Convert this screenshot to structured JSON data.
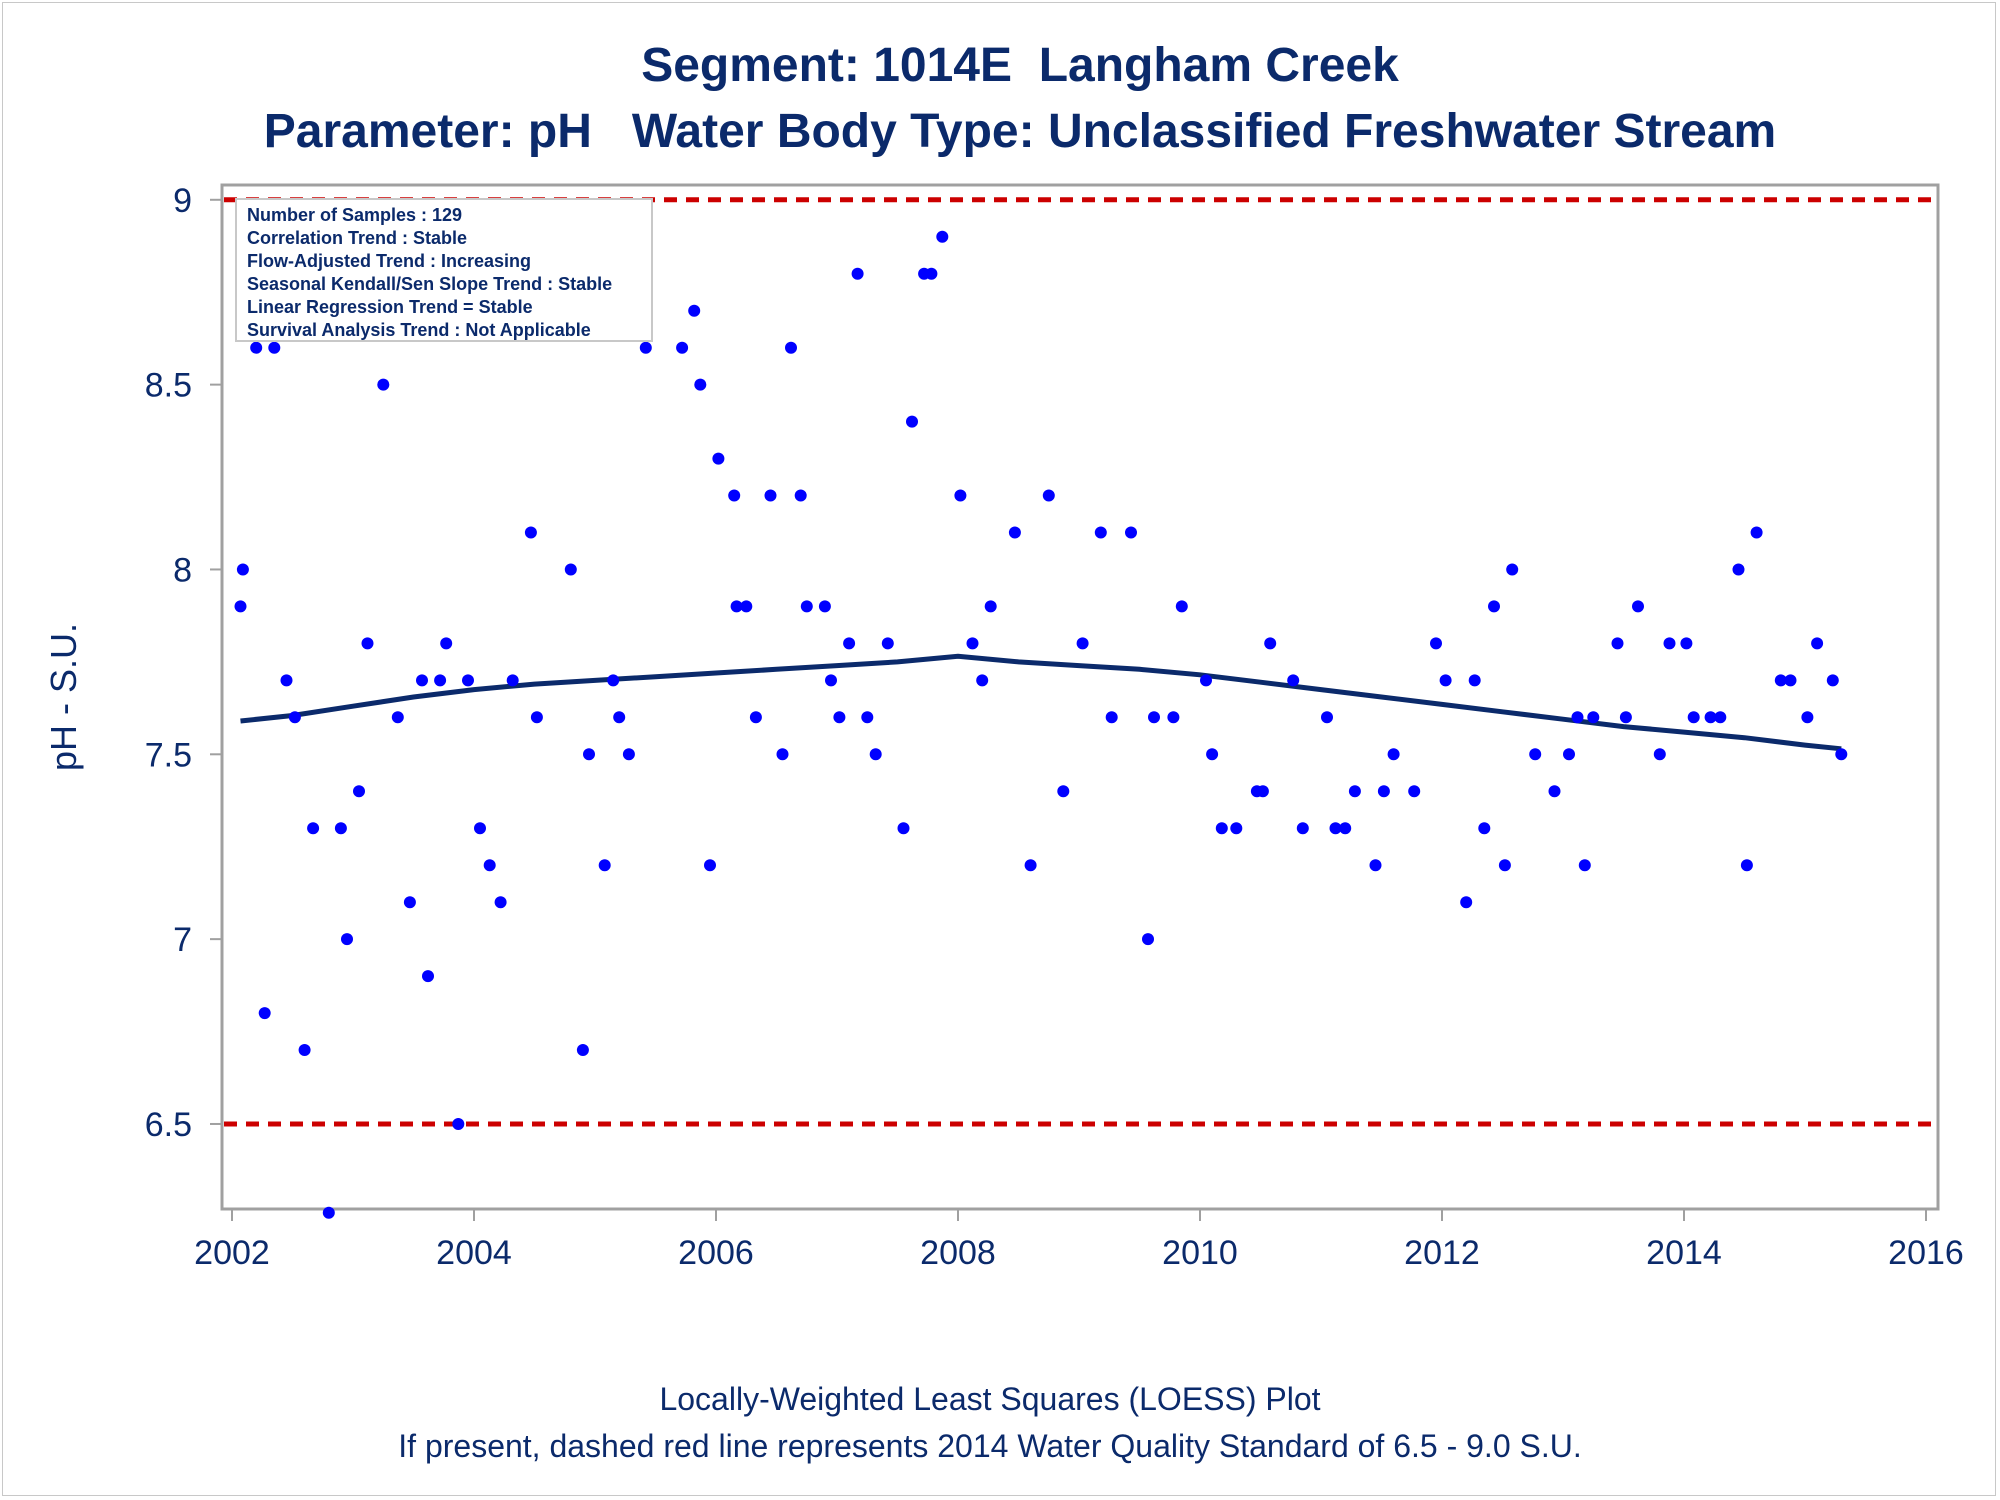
{
  "header": {
    "title": "Segment: 1014E  Langham Creek",
    "subtitle": "Parameter: pH   Water Body Type: Unclassified Freshwater Stream"
  },
  "footer": {
    "line1": "Locally-Weighted Least Squares (LOESS) Plot",
    "line2": "If present, dashed red line represents 2014 Water Quality Standard of 6.5 - 9.0 S.U."
  },
  "stats": [
    "Number of Samples : 129",
    "Correlation Trend : Stable",
    "Flow-Adjusted Trend : Increasing",
    "Seasonal Kendall/Sen Slope Trend : Stable",
    "Linear Regression Trend = Stable",
    "Survival Analysis Trend : Not Applicable"
  ],
  "colors": {
    "points": "#0000ff",
    "loess": "#0b2a6b",
    "standard": "#cc0000",
    "text": "#0b2a6b",
    "axis": "#a0a0a0"
  },
  "chart_data": {
    "type": "scatter",
    "ylabel": "pH - S.U.",
    "xlabel": "",
    "xlim": [
      2002,
      2016
    ],
    "ylim": [
      6.27,
      9.04
    ],
    "xticks": [
      "2002",
      "2004",
      "2006",
      "2008",
      "2010",
      "2012",
      "2014",
      "2016"
    ],
    "yticks": [
      "6.5",
      "7",
      "7.5",
      "8",
      "8.5",
      "9"
    ],
    "standards": [
      6.5,
      9.0
    ],
    "grid": false,
    "points": [
      [
        2002.07,
        7.9
      ],
      [
        2002.09,
        8.0
      ],
      [
        2002.2,
        8.6
      ],
      [
        2002.27,
        6.8
      ],
      [
        2002.35,
        8.6
      ],
      [
        2002.45,
        7.7
      ],
      [
        2002.52,
        7.6
      ],
      [
        2002.6,
        6.7
      ],
      [
        2002.67,
        7.3
      ],
      [
        2002.8,
        6.26
      ],
      [
        2002.9,
        7.3
      ],
      [
        2002.95,
        7.0
      ],
      [
        2003.05,
        7.4
      ],
      [
        2003.12,
        7.8
      ],
      [
        2003.25,
        8.5
      ],
      [
        2003.37,
        7.6
      ],
      [
        2003.47,
        7.1
      ],
      [
        2003.57,
        7.7
      ],
      [
        2003.62,
        6.9
      ],
      [
        2003.72,
        7.7
      ],
      [
        2003.77,
        7.8
      ],
      [
        2003.87,
        6.5
      ],
      [
        2003.95,
        7.7
      ],
      [
        2004.05,
        7.3
      ],
      [
        2004.13,
        7.2
      ],
      [
        2004.22,
        7.1
      ],
      [
        2004.32,
        7.7
      ],
      [
        2004.47,
        8.1
      ],
      [
        2004.52,
        7.6
      ],
      [
        2004.8,
        8.0
      ],
      [
        2004.9,
        6.7
      ],
      [
        2004.95,
        7.5
      ],
      [
        2005.08,
        7.2
      ],
      [
        2005.15,
        7.7
      ],
      [
        2005.2,
        7.6
      ],
      [
        2005.28,
        7.5
      ],
      [
        2005.42,
        8.6
      ],
      [
        2005.72,
        8.6
      ],
      [
        2005.82,
        8.7
      ],
      [
        2005.87,
        8.5
      ],
      [
        2005.95,
        7.2
      ],
      [
        2006.02,
        8.3
      ],
      [
        2006.15,
        8.2
      ],
      [
        2006.17,
        7.9
      ],
      [
        2006.25,
        7.9
      ],
      [
        2006.33,
        7.6
      ],
      [
        2006.45,
        8.2
      ],
      [
        2006.55,
        7.5
      ],
      [
        2006.62,
        8.6
      ],
      [
        2006.7,
        8.2
      ],
      [
        2006.75,
        7.9
      ],
      [
        2006.9,
        7.9
      ],
      [
        2006.95,
        7.7
      ],
      [
        2007.02,
        7.6
      ],
      [
        2007.1,
        7.8
      ],
      [
        2007.17,
        8.8
      ],
      [
        2007.25,
        7.6
      ],
      [
        2007.32,
        7.5
      ],
      [
        2007.42,
        7.8
      ],
      [
        2007.55,
        7.3
      ],
      [
        2007.62,
        8.4
      ],
      [
        2007.72,
        8.8
      ],
      [
        2007.78,
        8.8
      ],
      [
        2007.87,
        8.9
      ],
      [
        2008.02,
        8.2
      ],
      [
        2008.12,
        7.8
      ],
      [
        2008.2,
        7.7
      ],
      [
        2008.27,
        7.9
      ],
      [
        2008.47,
        8.1
      ],
      [
        2008.6,
        7.2
      ],
      [
        2008.75,
        8.2
      ],
      [
        2008.87,
        7.4
      ],
      [
        2009.03,
        7.8
      ],
      [
        2009.18,
        8.1
      ],
      [
        2009.27,
        7.6
      ],
      [
        2009.43,
        8.1
      ],
      [
        2009.57,
        7.0
      ],
      [
        2009.62,
        7.6
      ],
      [
        2009.78,
        7.6
      ],
      [
        2009.85,
        7.9
      ],
      [
        2010.05,
        7.7
      ],
      [
        2010.1,
        7.5
      ],
      [
        2010.18,
        7.3
      ],
      [
        2010.3,
        7.3
      ],
      [
        2010.47,
        7.4
      ],
      [
        2010.52,
        7.4
      ],
      [
        2010.58,
        7.8
      ],
      [
        2010.77,
        7.7
      ],
      [
        2010.85,
        7.3
      ],
      [
        2011.05,
        7.6
      ],
      [
        2011.12,
        7.3
      ],
      [
        2011.2,
        7.3
      ],
      [
        2011.28,
        7.4
      ],
      [
        2011.45,
        7.2
      ],
      [
        2011.52,
        7.4
      ],
      [
        2011.6,
        7.5
      ],
      [
        2011.77,
        7.4
      ],
      [
        2011.95,
        7.8
      ],
      [
        2012.03,
        7.7
      ],
      [
        2012.2,
        7.1
      ],
      [
        2012.27,
        7.7
      ],
      [
        2012.35,
        7.3
      ],
      [
        2012.43,
        7.9
      ],
      [
        2012.52,
        7.2
      ],
      [
        2012.58,
        8.0
      ],
      [
        2012.77,
        7.5
      ],
      [
        2012.93,
        7.4
      ],
      [
        2013.05,
        7.5
      ],
      [
        2013.12,
        7.6
      ],
      [
        2013.18,
        7.2
      ],
      [
        2013.25,
        7.6
      ],
      [
        2013.45,
        7.8
      ],
      [
        2013.52,
        7.6
      ],
      [
        2013.62,
        7.9
      ],
      [
        2013.8,
        7.5
      ],
      [
        2013.88,
        7.8
      ],
      [
        2014.02,
        7.8
      ],
      [
        2014.08,
        7.6
      ],
      [
        2014.22,
        7.6
      ],
      [
        2014.3,
        7.6
      ],
      [
        2014.45,
        8.0
      ],
      [
        2014.52,
        7.2
      ],
      [
        2014.6,
        8.1
      ],
      [
        2014.8,
        7.7
      ],
      [
        2014.88,
        7.7
      ],
      [
        2015.02,
        7.6
      ],
      [
        2015.1,
        7.8
      ],
      [
        2015.23,
        7.7
      ],
      [
        2015.3,
        7.5
      ]
    ],
    "loess": [
      [
        2002.07,
        7.59
      ],
      [
        2002.5,
        7.605
      ],
      [
        2003.0,
        7.63
      ],
      [
        2003.5,
        7.655
      ],
      [
        2004.0,
        7.675
      ],
      [
        2004.5,
        7.69
      ],
      [
        2005.0,
        7.7
      ],
      [
        2005.5,
        7.71
      ],
      [
        2006.0,
        7.72
      ],
      [
        2006.5,
        7.73
      ],
      [
        2007.0,
        7.74
      ],
      [
        2007.5,
        7.75
      ],
      [
        2008.0,
        7.765
      ],
      [
        2008.5,
        7.75
      ],
      [
        2009.0,
        7.74
      ],
      [
        2009.5,
        7.73
      ],
      [
        2010.0,
        7.715
      ],
      [
        2010.5,
        7.695
      ],
      [
        2011.0,
        7.675
      ],
      [
        2011.5,
        7.655
      ],
      [
        2012.0,
        7.635
      ],
      [
        2012.5,
        7.615
      ],
      [
        2013.0,
        7.595
      ],
      [
        2013.5,
        7.575
      ],
      [
        2014.0,
        7.56
      ],
      [
        2014.5,
        7.545
      ],
      [
        2015.0,
        7.525
      ],
      [
        2015.3,
        7.515
      ]
    ]
  }
}
